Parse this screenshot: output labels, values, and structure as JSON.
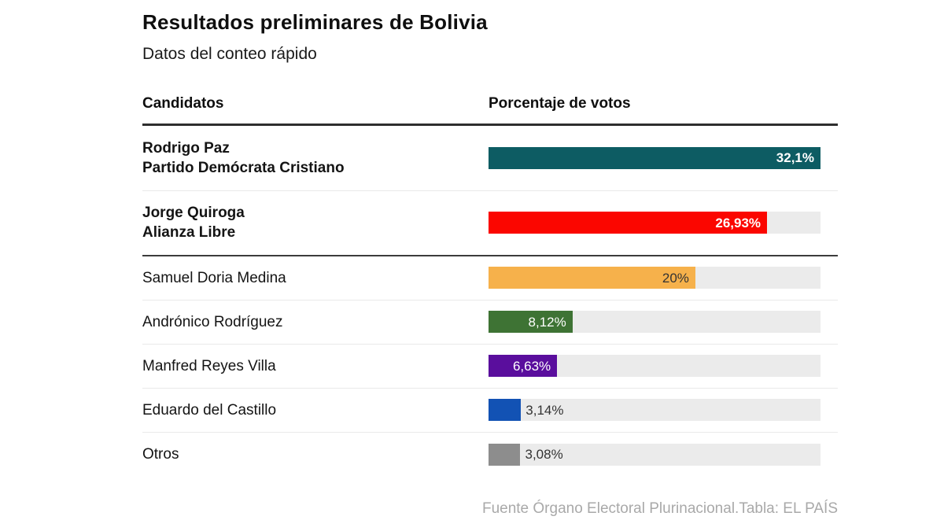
{
  "header": {
    "title": "Resultados preliminares de Bolivia",
    "subtitle": "Datos del conteo rápido"
  },
  "chart_data": {
    "type": "bar",
    "orientation": "horizontal",
    "title": "Resultados preliminares de Bolivia",
    "subtitle": "Datos del conteo rápido",
    "col_headers": {
      "candidates": "Candidatos",
      "percentage": "Porcentaje de votos"
    },
    "scale_max": 32.1,
    "track_color": "#ebebeb",
    "rows": [
      {
        "name": "Rodrigo Paz",
        "party": "Partido Demócrata Cristiano",
        "value": 32.1,
        "value_label": "32,1%",
        "color": "#0d5c63",
        "label_inside": true,
        "label_color": "#ffffff"
      },
      {
        "name": "Jorge Quiroga",
        "party": "Alianza Libre",
        "value": 26.93,
        "value_label": "26,93%",
        "color": "#fb0600",
        "label_inside": true,
        "label_color": "#ffffff"
      },
      {
        "name": "Samuel Doria Medina",
        "value": 20,
        "value_label": "20%",
        "color": "#f6b14b",
        "label_inside": true,
        "label_color": "#333333"
      },
      {
        "name": "Andrónico Rodríguez",
        "value": 8.12,
        "value_label": "8,12%",
        "color": "#3e7334",
        "label_inside": true,
        "label_color": "#ffffff"
      },
      {
        "name": "Manfred Reyes Villa",
        "value": 6.63,
        "value_label": "6,63%",
        "color": "#5a0e9d",
        "label_inside": true,
        "label_color": "#ffffff"
      },
      {
        "name": "Eduardo del Castillo",
        "value": 3.14,
        "value_label": "3,14%",
        "color": "#1252b4",
        "label_inside": false,
        "label_color": "#333333"
      },
      {
        "name": "Otros",
        "value": 3.08,
        "value_label": "3,08%",
        "color": "#8d8d8d",
        "label_inside": false,
        "label_color": "#333333"
      }
    ],
    "source": "Fuente Órgano Electoral Plurinacional.Tabla: EL PAÍS"
  }
}
